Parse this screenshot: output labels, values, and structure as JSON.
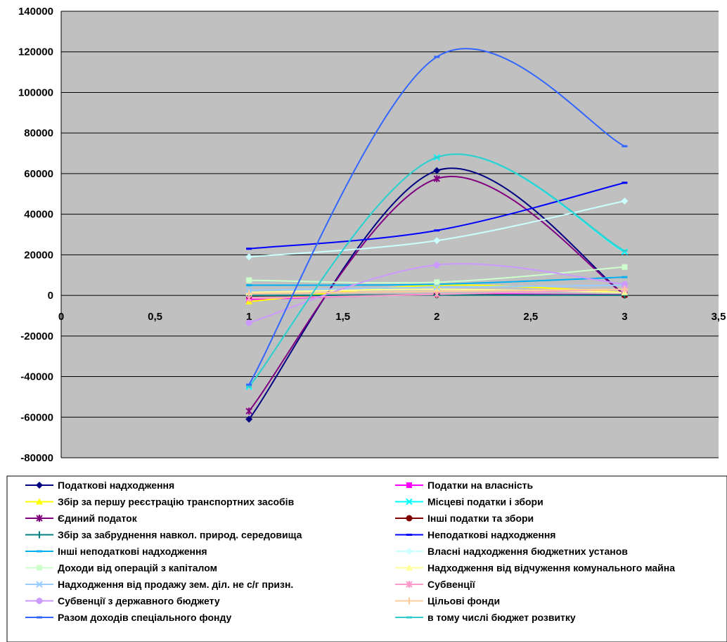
{
  "chart_data": {
    "type": "scatter",
    "xlim": [
      0,
      3.5
    ],
    "ylim": [
      -80000,
      140000
    ],
    "x_ticks": [
      "0",
      "0,5",
      "1",
      "1,5",
      "2",
      "2,5",
      "3",
      "3,5"
    ],
    "y_ticks": [
      "140000",
      "120000",
      "100000",
      "80000",
      "60000",
      "40000",
      "20000",
      "0",
      "-20000",
      "-40000",
      "-60000",
      "-80000"
    ],
    "x_tick_values": [
      0,
      0.5,
      1,
      1.5,
      2,
      2.5,
      3,
      3.5
    ],
    "y_tick_values": [
      140000,
      120000,
      100000,
      80000,
      60000,
      40000,
      20000,
      0,
      -20000,
      -40000,
      -60000,
      -80000
    ],
    "grid": "horizontal",
    "plot_background": "#c0c0c0",
    "legend_position": "bottom",
    "x": [
      1,
      2,
      3
    ],
    "series": [
      {
        "name": "Податкові надходження",
        "color": "#000080",
        "marker": "diamond",
        "values": [
          -61000,
          61500,
          500
        ]
      },
      {
        "name": "Податки на власність",
        "color": "#ff00ff",
        "marker": "square",
        "values": [
          -2000,
          500,
          300
        ]
      },
      {
        "name": "Збір за першу реєстрацію транспортних засобів",
        "color": "#ffff00",
        "marker": "triangle",
        "values": [
          -3000,
          5000,
          1500
        ]
      },
      {
        "name": "Місцеві податки і збори",
        "color": "#00ffff",
        "marker": "x",
        "values": [
          -45000,
          68000,
          21500
        ]
      },
      {
        "name": "Єдиний податок",
        "color": "#800080",
        "marker": "star",
        "values": [
          -57000,
          57500,
          500
        ]
      },
      {
        "name": "Інші податки та збори",
        "color": "#800000",
        "marker": "circle",
        "values": [
          -300,
          300,
          100
        ]
      },
      {
        "name": "Збір за забруднення навкол. природ. середовища",
        "color": "#008080",
        "marker": "plus",
        "values": [
          -100,
          200,
          100
        ]
      },
      {
        "name": "Неподаткові надходження",
        "color": "#0000ff",
        "marker": "dash",
        "values": [
          23000,
          32000,
          55500
        ]
      },
      {
        "name": "Інші неподаткові надходження",
        "color": "#00b0f0",
        "marker": "dash",
        "values": [
          5000,
          5500,
          9000
        ]
      },
      {
        "name": "Власні надходження бюджетних установ",
        "color": "#ccffff",
        "marker": "diamond",
        "values": [
          19000,
          27000,
          46500
        ]
      },
      {
        "name": "Доходи від операцій з капіталом",
        "color": "#ccffcc",
        "marker": "square",
        "values": [
          7500,
          6500,
          14000
        ]
      },
      {
        "name": "Надходження від відчуження комунального майна",
        "color": "#ffff99",
        "marker": "triangle",
        "values": [
          1500,
          3000,
          1500
        ]
      },
      {
        "name": "Надходження від продажу зем. діл. не с/г призн.",
        "color": "#99ccff",
        "marker": "x",
        "values": [
          2500,
          4000,
          5000
        ]
      },
      {
        "name": "Субвенції",
        "color": "#ff99cc",
        "marker": "star",
        "values": [
          -1500,
          500,
          3000
        ]
      },
      {
        "name": "Субвенції з державного бюджету",
        "color": "#cc99ff",
        "marker": "circle",
        "values": [
          -13500,
          15000,
          5500
        ]
      },
      {
        "name": "Цільові фонди",
        "color": "#ffcc99",
        "marker": "plus",
        "values": [
          1000,
          2000,
          3000
        ]
      },
      {
        "name": "Разом доходів спеціального фонду",
        "color": "#3366ff",
        "marker": "dash",
        "values": [
          -44000,
          117500,
          73500
        ]
      },
      {
        "name": "в тому числі бюджет розвитку",
        "color": "#33cccc",
        "marker": "dash",
        "values": [
          -45000,
          68000,
          22000
        ]
      }
    ]
  }
}
